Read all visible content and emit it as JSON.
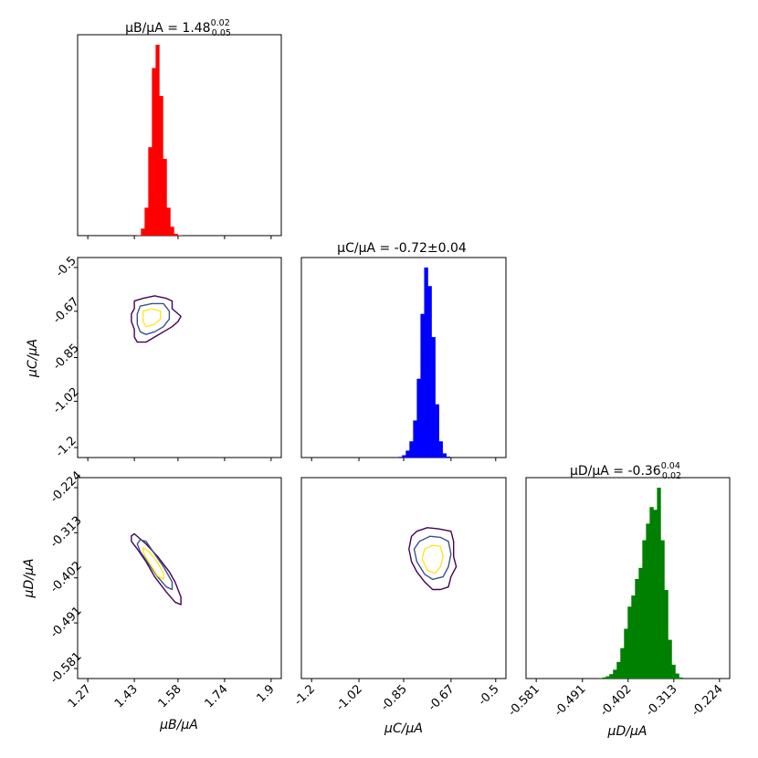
{
  "chart_data": {
    "type": "corner",
    "titles": {
      "B": {
        "prefix": "μB/μA = 1.48",
        "sup": "0.02",
        "sub": "0.05"
      },
      "C": {
        "text": "μC/μA = -0.72±0.04"
      },
      "D": {
        "prefix": "μD/μA = -0.36",
        "sup": "0.04",
        "sub": "0.02"
      }
    },
    "axis_labels": {
      "B": "μB/μA",
      "C": "μC/μA",
      "D": "μD/μA"
    },
    "ticks": {
      "B": {
        "range": [
          1.27,
          1.9
        ],
        "labels": [
          "1.27",
          "1.43",
          "1.58",
          "1.74",
          "1.9"
        ]
      },
      "C": {
        "range": [
          -1.2,
          -0.5
        ],
        "labels": [
          "-1.2",
          "-1.02",
          "-0.85",
          "-0.67",
          "-0.5"
        ]
      },
      "D": {
        "range": [
          -0.581,
          -0.224
        ],
        "labels": [
          "-0.581",
          "-0.491",
          "-0.402",
          "-0.313",
          "-0.224"
        ]
      }
    },
    "histograms": {
      "B": {
        "color": "#ff0000",
        "bin_width": 0.0126,
        "edges_start": 1.44,
        "counts": [
          2,
          30,
          120,
          380,
          720,
          820,
          600,
          330,
          120,
          38,
          8,
          2
        ]
      },
      "C": {
        "color": "#0000ff",
        "bin_width": 0.014,
        "edges_start": -0.87,
        "counts": [
          3,
          10,
          30,
          70,
          160,
          340,
          620,
          820,
          740,
          520,
          230,
          70,
          18,
          4
        ]
      },
      "D": {
        "color": "#008000",
        "bin_width": 0.00714,
        "edges_start": -0.46,
        "counts": [
          2,
          4,
          8,
          16,
          32,
          60,
          110,
          180,
          260,
          300,
          360,
          400,
          500,
          560,
          620,
          610,
          690,
          500,
          320,
          140,
          50,
          18,
          4
        ]
      }
    },
    "contours": {
      "BC": {
        "outer": [
          [
            1.43,
            -0.63
          ],
          [
            1.46,
            -0.62
          ],
          [
            1.5,
            -0.61
          ],
          [
            1.54,
            -0.62
          ],
          [
            1.56,
            -0.63
          ],
          [
            1.56,
            -0.66
          ],
          [
            1.59,
            -0.69
          ],
          [
            1.58,
            -0.71
          ],
          [
            1.56,
            -0.73
          ],
          [
            1.53,
            -0.75
          ],
          [
            1.5,
            -0.77
          ],
          [
            1.47,
            -0.79
          ],
          [
            1.44,
            -0.79
          ],
          [
            1.43,
            -0.77
          ],
          [
            1.43,
            -0.74
          ],
          [
            1.42,
            -0.71
          ],
          [
            1.42,
            -0.68
          ],
          [
            1.43,
            -0.66
          ]
        ],
        "mid": [
          [
            1.45,
            -0.65
          ],
          [
            1.49,
            -0.64
          ],
          [
            1.53,
            -0.64
          ],
          [
            1.55,
            -0.67
          ],
          [
            1.55,
            -0.7
          ],
          [
            1.53,
            -0.73
          ],
          [
            1.5,
            -0.75
          ],
          [
            1.47,
            -0.76
          ],
          [
            1.45,
            -0.75
          ],
          [
            1.44,
            -0.72
          ],
          [
            1.44,
            -0.68
          ]
        ],
        "inner": [
          [
            1.46,
            -0.67
          ],
          [
            1.49,
            -0.66
          ],
          [
            1.52,
            -0.67
          ],
          [
            1.52,
            -0.7
          ],
          [
            1.5,
            -0.72
          ],
          [
            1.47,
            -0.73
          ],
          [
            1.46,
            -0.71
          ],
          [
            1.46,
            -0.69
          ]
        ]
      },
      "BD": {
        "outer": [
          [
            1.42,
            -0.319
          ],
          [
            1.43,
            -0.315
          ],
          [
            1.47,
            -0.335
          ],
          [
            1.51,
            -0.36
          ],
          [
            1.55,
            -0.39
          ],
          [
            1.57,
            -0.41
          ],
          [
            1.59,
            -0.44
          ],
          [
            1.59,
            -0.455
          ],
          [
            1.57,
            -0.45
          ],
          [
            1.54,
            -0.43
          ],
          [
            1.5,
            -0.4
          ],
          [
            1.47,
            -0.37
          ],
          [
            1.44,
            -0.345
          ],
          [
            1.42,
            -0.33
          ]
        ],
        "mid": [
          [
            1.45,
            -0.327
          ],
          [
            1.47,
            -0.33
          ],
          [
            1.5,
            -0.355
          ],
          [
            1.53,
            -0.38
          ],
          [
            1.56,
            -0.41
          ],
          [
            1.56,
            -0.425
          ],
          [
            1.54,
            -0.42
          ],
          [
            1.51,
            -0.4
          ],
          [
            1.48,
            -0.375
          ],
          [
            1.45,
            -0.35
          ],
          [
            1.44,
            -0.335
          ]
        ],
        "inner": [
          [
            1.46,
            -0.343
          ],
          [
            1.48,
            -0.35
          ],
          [
            1.51,
            -0.372
          ],
          [
            1.53,
            -0.393
          ],
          [
            1.53,
            -0.405
          ],
          [
            1.51,
            -0.398
          ],
          [
            1.49,
            -0.38
          ],
          [
            1.47,
            -0.362
          ],
          [
            1.46,
            -0.35
          ]
        ]
      },
      "CD": {
        "outer": [
          [
            -0.8,
            -0.31
          ],
          [
            -0.76,
            -0.303
          ],
          [
            -0.72,
            -0.305
          ],
          [
            -0.67,
            -0.31
          ],
          [
            -0.66,
            -0.33
          ],
          [
            -0.66,
            -0.36
          ],
          [
            -0.65,
            -0.38
          ],
          [
            -0.67,
            -0.4
          ],
          [
            -0.68,
            -0.42
          ],
          [
            -0.71,
            -0.425
          ],
          [
            -0.74,
            -0.425
          ],
          [
            -0.77,
            -0.41
          ],
          [
            -0.8,
            -0.39
          ],
          [
            -0.82,
            -0.37
          ],
          [
            -0.83,
            -0.345
          ],
          [
            -0.82,
            -0.32
          ]
        ],
        "mid": [
          [
            -0.79,
            -0.33
          ],
          [
            -0.75,
            -0.32
          ],
          [
            -0.71,
            -0.322
          ],
          [
            -0.68,
            -0.33
          ],
          [
            -0.67,
            -0.355
          ],
          [
            -0.68,
            -0.38
          ],
          [
            -0.7,
            -0.4
          ],
          [
            -0.74,
            -0.405
          ],
          [
            -0.77,
            -0.395
          ],
          [
            -0.8,
            -0.37
          ],
          [
            -0.81,
            -0.345
          ]
        ],
        "inner": [
          [
            -0.77,
            -0.345
          ],
          [
            -0.74,
            -0.338
          ],
          [
            -0.71,
            -0.34
          ],
          [
            -0.7,
            -0.36
          ],
          [
            -0.71,
            -0.38
          ],
          [
            -0.73,
            -0.393
          ],
          [
            -0.76,
            -0.387
          ],
          [
            -0.78,
            -0.365
          ]
        ]
      }
    },
    "contour_colors": {
      "outer": "#440154",
      "mid": "#3b528b",
      "inner": "#fde725"
    }
  }
}
